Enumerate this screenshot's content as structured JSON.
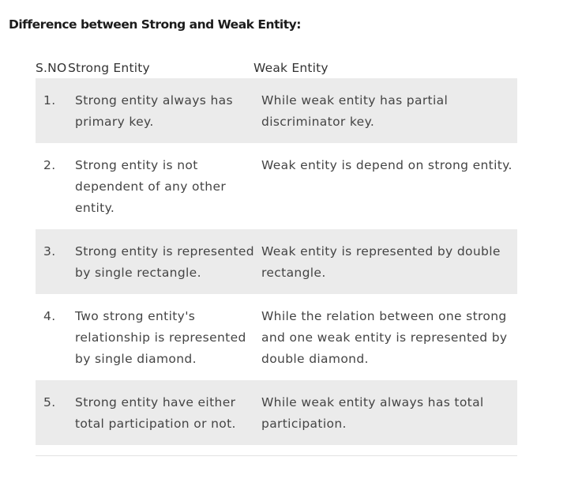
{
  "heading": "Difference between Strong and Weak Entity:",
  "table": {
    "headers": [
      "S.NO",
      "Strong Entity",
      "Weak Entity"
    ],
    "rows": [
      {
        "no": "1.",
        "strong": [
          "Strong entity always has",
          "primary key."
        ],
        "weak": [
          "While weak entity has partial",
          "discriminator key."
        ]
      },
      {
        "no": "2.",
        "strong": [
          "Strong entity is not",
          "dependent of any other",
          "entity."
        ],
        "weak": [
          "Weak entity is depend on strong entity."
        ]
      },
      {
        "no": "3.",
        "strong": [
          "Strong entity is represented",
          "by single rectangle."
        ],
        "weak": [
          "Weak entity is represented by double",
          "rectangle."
        ]
      },
      {
        "no": "4.",
        "strong": [
          "Two strong entity's",
          "relationship is represented",
          "by single diamond."
        ],
        "weak": [
          "While the relation between one strong",
          "and one weak entity is represented by",
          "double diamond."
        ]
      },
      {
        "no": "5.",
        "strong": [
          "Strong entity have either",
          "total participation or not."
        ],
        "weak": [
          "While weak entity always has total",
          "participation."
        ]
      }
    ]
  }
}
